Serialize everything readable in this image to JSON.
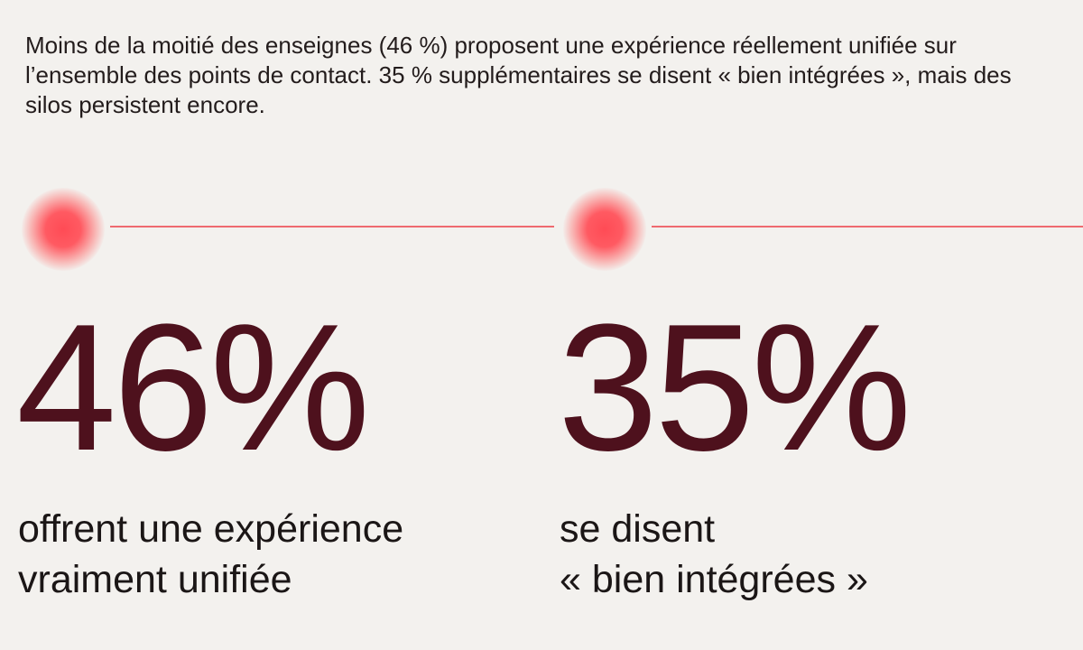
{
  "intro": {
    "text": "Moins de la moitié des enseignes (46 %) proposent une expérience réellement unifiée sur l’ensemble des points de contact. 35 % supplémentaires se disent « bien intégrées », mais des silos persistent encore."
  },
  "stats": [
    {
      "value": "46%",
      "caption_line1": "offrent une expérience",
      "caption_line2": "vraiment unifiée"
    },
    {
      "value": "35%",
      "caption_line1": "se disent",
      "caption_line2": "« bien intégrées »"
    }
  ],
  "colors": {
    "background": "#f3f1ee",
    "accent": "#ff4b55",
    "line": "#ef6a70",
    "number": "#4e111d",
    "text": "#1b1616"
  }
}
